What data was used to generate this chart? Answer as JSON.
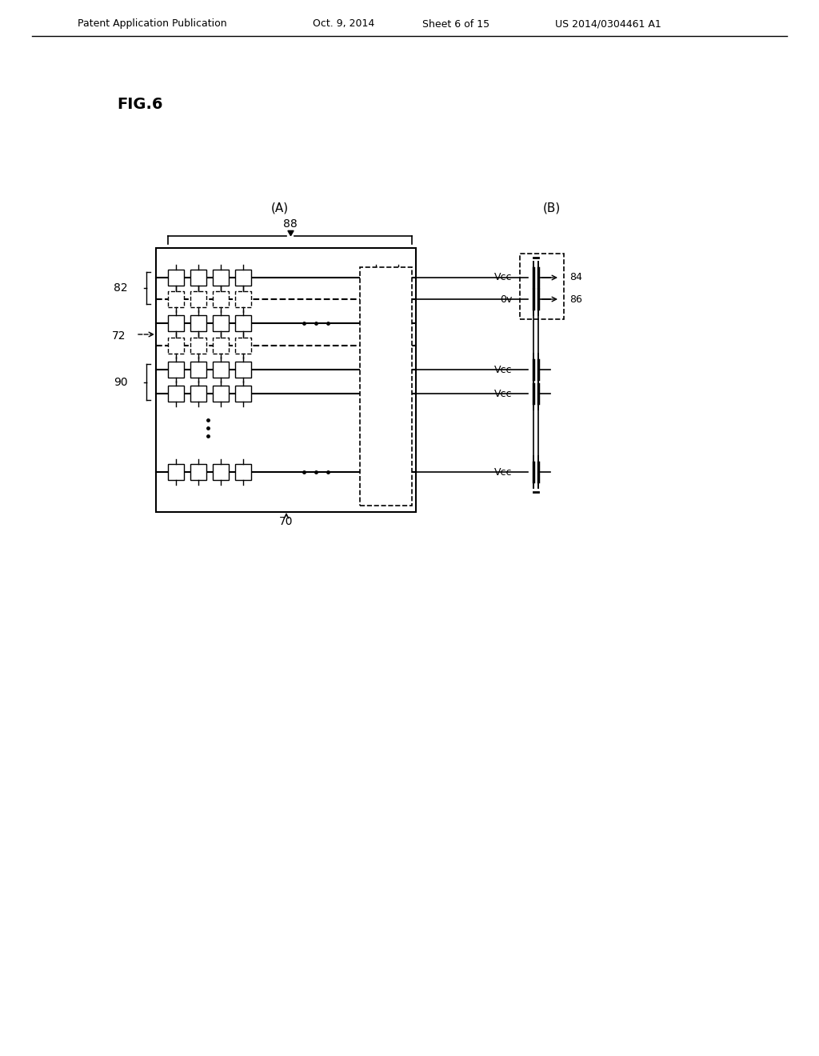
{
  "bg_color": "#ffffff",
  "header_text": "Patent Application Publication",
  "header_date": "Oct. 9, 2014",
  "header_sheet": "Sheet 6 of 15",
  "header_patent": "US 2014/0304461 A1",
  "fig_label": "FIG.6",
  "label_A": "(A)",
  "label_B": "(B)",
  "label_88": "88",
  "label_82": "82",
  "label_72": "72",
  "label_90": "90",
  "label_70": "70",
  "label_Vcc1": "Vcc",
  "label_0v": "0v",
  "label_Vcc2": "Vcc",
  "label_Vcc3": "Vcc",
  "label_Vcc4": "Vcc",
  "label_84": "84",
  "label_86": "86"
}
